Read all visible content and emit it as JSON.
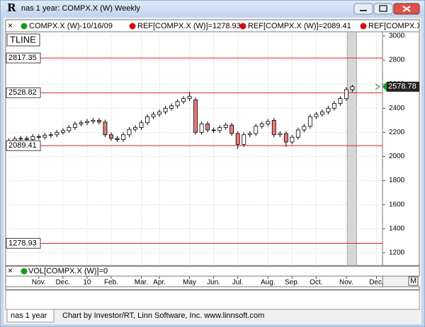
{
  "window": {
    "title": "nas 1 year: COMPX.X (W) Weekly",
    "icon": "R"
  },
  "chart_data": {
    "type": "candlestick",
    "legend": [
      "COMPX.X (W)-10/16/09",
      "REF[COMPX.X (W)]=1278.93",
      "REF[COMPX.X (W)]=2089.41",
      "REF[COMPX.X (W)]"
    ],
    "indicator": "TLINE",
    "up_color": "#ffffff",
    "down_color": "#e87878",
    "ref_color": "#e02020",
    "open": [
      2115,
      2130,
      2145,
      2150,
      2140,
      2165,
      2160,
      2175,
      2180,
      2200,
      2215,
      2240,
      2270,
      2280,
      2290,
      2300,
      2285,
      2180,
      2150,
      2140,
      2180,
      2225,
      2240,
      2280,
      2330,
      2350,
      2370,
      2400,
      2420,
      2455,
      2480,
      2470,
      2200,
      2270,
      2220,
      2215,
      2240,
      2260,
      2190,
      2100,
      2180,
      2190,
      2250,
      2270,
      2300,
      2180,
      2190,
      2120,
      2160,
      2220,
      2250,
      2330,
      2350,
      2370,
      2400,
      2440,
      2480,
      2555
    ],
    "high": [
      2150,
      2165,
      2170,
      2170,
      2185,
      2185,
      2195,
      2200,
      2220,
      2235,
      2260,
      2290,
      2300,
      2310,
      2320,
      2320,
      2305,
      2200,
      2170,
      2200,
      2245,
      2260,
      2300,
      2350,
      2370,
      2390,
      2420,
      2440,
      2475,
      2500,
      2535,
      2490,
      2290,
      2290,
      2240,
      2260,
      2280,
      2280,
      2210,
      2200,
      2210,
      2270,
      2290,
      2310,
      2320,
      2210,
      2210,
      2180,
      2240,
      2270,
      2350,
      2370,
      2390,
      2420,
      2460,
      2500,
      2575,
      2595
    ],
    "low": [
      2095,
      2110,
      2125,
      2120,
      2120,
      2140,
      2140,
      2155,
      2160,
      2180,
      2195,
      2220,
      2250,
      2260,
      2270,
      2265,
      2160,
      2130,
      2120,
      2120,
      2160,
      2205,
      2220,
      2260,
      2310,
      2330,
      2350,
      2380,
      2400,
      2435,
      2460,
      2180,
      2180,
      2200,
      2195,
      2195,
      2220,
      2170,
      2060,
      2080,
      2160,
      2170,
      2230,
      2250,
      2160,
      2160,
      2080,
      2100,
      2140,
      2200,
      2230,
      2310,
      2330,
      2350,
      2380,
      2420,
      2460,
      2535
    ],
    "close": [
      2130,
      2145,
      2150,
      2140,
      2165,
      2160,
      2175,
      2180,
      2200,
      2215,
      2240,
      2270,
      2280,
      2290,
      2300,
      2285,
      2180,
      2150,
      2140,
      2180,
      2225,
      2240,
      2280,
      2330,
      2350,
      2370,
      2400,
      2420,
      2455,
      2480,
      2500,
      2200,
      2270,
      2220,
      2215,
      2240,
      2260,
      2190,
      2100,
      2180,
      2190,
      2250,
      2270,
      2290,
      2180,
      2190,
      2120,
      2160,
      2220,
      2250,
      2330,
      2350,
      2370,
      2400,
      2440,
      2480,
      2555,
      2578.78
    ],
    "ref_lines": [
      2817.35,
      2528.82,
      2089.41,
      1278.93
    ],
    "ylim": [
      1094,
      3035
    ],
    "yticks": [
      1200,
      1400,
      1600,
      1800,
      2000,
      2200,
      2400,
      2600,
      2800,
      3000
    ],
    "xlim": [
      -0.5,
      62
    ],
    "xticks": [
      {
        "value": 5,
        "label": "Nov."
      },
      {
        "value": 9,
        "label": "Dec."
      },
      {
        "value": 13,
        "label": "10"
      },
      {
        "value": 17,
        "label": "Feb."
      },
      {
        "value": 22,
        "label": "Mar."
      },
      {
        "value": 25,
        "label": "Apr."
      },
      {
        "value": 30,
        "label": "May"
      },
      {
        "value": 34,
        "label": "Jun."
      },
      {
        "value": 38,
        "label": "Jul."
      },
      {
        "value": 43,
        "label": "Aug."
      },
      {
        "value": 47,
        "label": "Sep."
      },
      {
        "value": 51,
        "label": "Oct."
      },
      {
        "value": 56,
        "label": "Nov."
      },
      {
        "value": 61,
        "label": "Dec."
      }
    ],
    "grid": true,
    "volume_label": "VOL[COMPX.X (W)]=0"
  },
  "footer": {
    "tab": "nas 1 year",
    "credit": "Chart by Investor/RT, Linn Software, Inc. www.linnsoft.com"
  }
}
